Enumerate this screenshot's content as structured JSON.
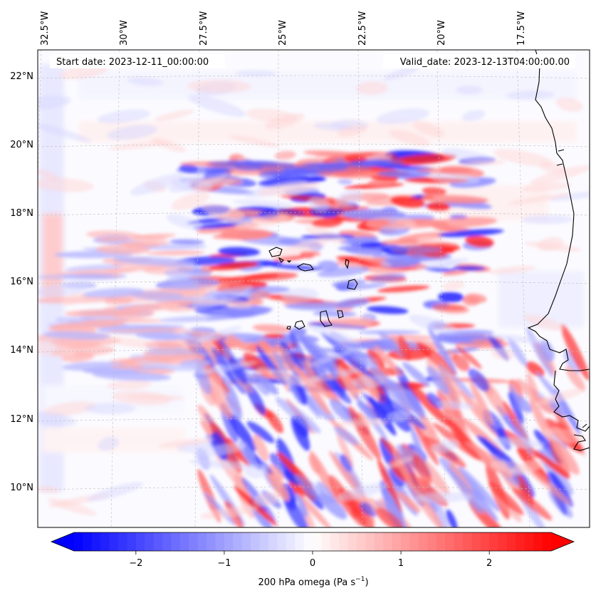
{
  "header": {
    "start_date": "Start date: 2023-12-11_00:00:00",
    "valid_date": "Valid_date: 2023-12-13T04:00:00.00"
  },
  "lon_labels": [
    "32.5°W",
    "30°W",
    "27.5°W",
    "25°W",
    "22.5°W",
    "20°W",
    "17.5°W"
  ],
  "lat_labels": [
    "22°N",
    "20°N",
    "18°N",
    "16°N",
    "14°N",
    "12°N",
    "10°N"
  ],
  "colorbar": {
    "ticks": [
      "−2",
      "−1",
      "0",
      "1",
      "2"
    ],
    "tick_values": [
      -2,
      -1,
      0,
      1,
      2
    ],
    "min": -2.7,
    "max": 2.7,
    "label_main": "200 hPa omega (Pa s",
    "label_exp": "−1",
    "label_close": ")",
    "neg_color": "#0000ff",
    "pos_color": "#ff0000",
    "mid_color": "#ffffff"
  },
  "map": {
    "field": "200 hPa omega",
    "colormap": "bwr",
    "gridlines": true,
    "coastline_color": "#000000"
  }
}
